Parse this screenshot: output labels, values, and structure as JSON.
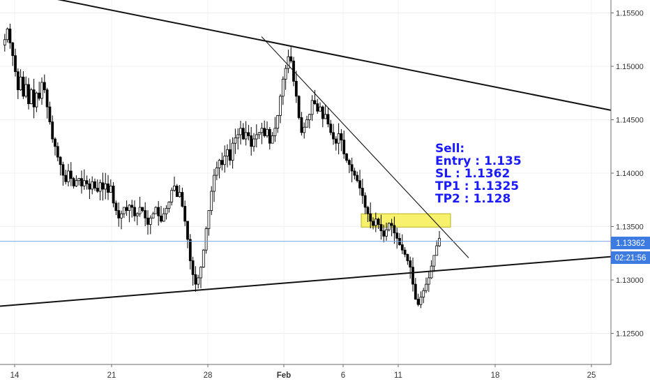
{
  "chart_data": {
    "type": "candlestick",
    "x_tick_labels": [
      "14",
      "21",
      "28",
      "Feb",
      "6",
      "11",
      "18",
      "25"
    ],
    "y_tick_labels": [
      "1.15500",
      "1.15000",
      "1.14500",
      "1.14000",
      "1.13500",
      "1.13000",
      "1.12500"
    ],
    "y_ticks": [
      1.155,
      1.15,
      1.145,
      1.14,
      1.135,
      1.13,
      1.125
    ],
    "ylim": [
      1.1219,
      1.1574
    ],
    "price_label": "1.13362",
    "price_value": 1.13362,
    "countdown_label": "02:21:56",
    "countdown_value": 1.13182,
    "note_lines": [
      "Sell:",
      "Entry : 1.135",
      "SL : 1.1362",
      "TP1 : 1.1325",
      "TP2 : 1.128"
    ],
    "entry_zone": {
      "low": 1.13495,
      "high": 1.1362
    },
    "lines": [
      {
        "name": "upper-trendline",
        "from": [
          0,
          1.15735
        ],
        "to": [
          292,
          1.14589
        ]
      },
      {
        "name": "lower-trendline",
        "from": [
          0,
          1.12755
        ],
        "to": [
          292,
          1.13218
        ]
      },
      {
        "name": "descending-trendline",
        "from": [
          125,
          1.15278
        ],
        "to": [
          224,
          1.13207
        ]
      }
    ],
    "candles": {
      "x_start": 1,
      "x_step": 1.345,
      "open": 1.152,
      "close": 1.1339,
      "path": [
        1.152,
        1.1525,
        1.1535,
        1.1522,
        1.151,
        1.1495,
        1.1478,
        1.149,
        1.1472,
        1.1483,
        1.1465,
        1.1478,
        1.1462,
        1.1475,
        1.147,
        1.1485,
        1.1478,
        1.1462,
        1.1448,
        1.1432,
        1.1425,
        1.1415,
        1.1408,
        1.1398,
        1.1392,
        1.1402,
        1.1395,
        1.1388,
        1.1393,
        1.1395,
        1.1388,
        1.1393,
        1.139,
        1.1385,
        1.1392,
        1.1386,
        1.1383,
        1.1391,
        1.1385,
        1.139,
        1.1382,
        1.1388,
        1.1372,
        1.1365,
        1.1358,
        1.1362,
        1.1368,
        1.1365,
        1.137,
        1.1368,
        1.136,
        1.1362,
        1.1368,
        1.1365,
        1.1358,
        1.1352,
        1.1358,
        1.1362,
        1.1368,
        1.136,
        1.1355,
        1.1362,
        1.1367,
        1.1373,
        1.1384,
        1.1388,
        1.1378,
        1.1382,
        1.1369,
        1.1355,
        1.1338,
        1.1318,
        1.1305,
        1.1296,
        1.1302,
        1.1312,
        1.1328,
        1.1348,
        1.1365,
        1.1383,
        1.1398,
        1.1405,
        1.1412,
        1.1408,
        1.1416,
        1.1422,
        1.1412,
        1.1428,
        1.1433,
        1.1436,
        1.1442,
        1.1432,
        1.1438,
        1.1435,
        1.1425,
        1.1432,
        1.1436,
        1.1438,
        1.1442,
        1.1435,
        1.1441,
        1.1428,
        1.1435,
        1.1442,
        1.1454,
        1.1472,
        1.1488,
        1.1498,
        1.1509,
        1.1505,
        1.1486,
        1.1472,
        1.1452,
        1.1438,
        1.1443,
        1.145,
        1.1455,
        1.1468,
        1.1465,
        1.1458,
        1.1462,
        1.1451,
        1.1455,
        1.1446,
        1.1438,
        1.1432,
        1.1428,
        1.1437,
        1.1431,
        1.1418,
        1.1412,
        1.1408,
        1.1402,
        1.1398,
        1.1393,
        1.1386,
        1.1379,
        1.1368,
        1.1362,
        1.1355,
        1.1351,
        1.1357,
        1.1352,
        1.1346,
        1.1341,
        1.1347,
        1.1353,
        1.1351,
        1.1344,
        1.1339,
        1.1333,
        1.1328,
        1.1324,
        1.1318,
        1.1312,
        1.1296,
        1.1282,
        1.1277,
        1.1284,
        1.129,
        1.1296,
        1.1302,
        1.1313,
        1.1323,
        1.1332,
        1.1339
      ]
    }
  }
}
